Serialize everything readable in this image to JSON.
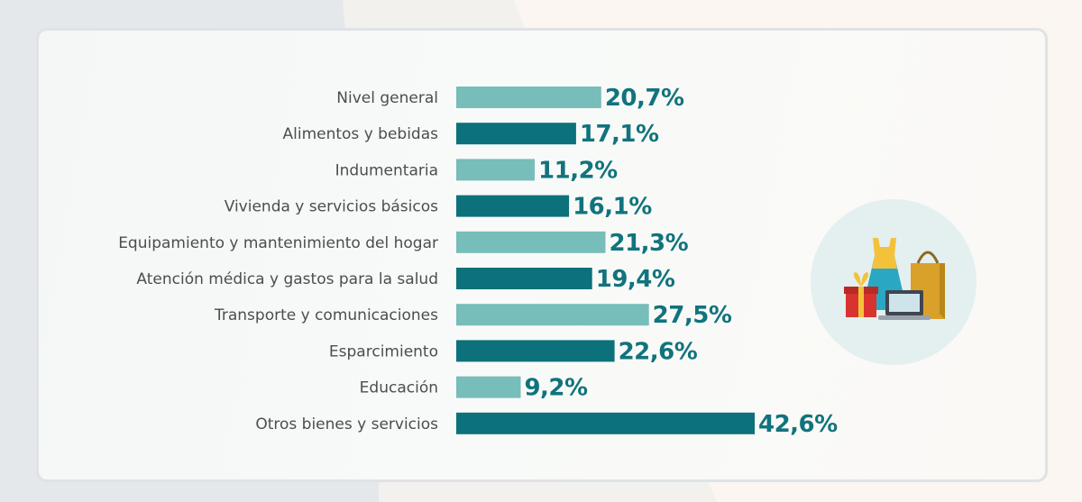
{
  "chart_data": {
    "type": "bar",
    "orientation": "horizontal",
    "categories": [
      "Nivel general",
      "Alimentos y bebidas",
      "Indumentaria",
      "Vivienda y servicios básicos",
      "Equipamiento y mantenimiento del hogar",
      "Atención médica y gastos para la salud",
      "Transporte y comunicaciones",
      "Esparcimiento",
      "Educación",
      "Otros bienes y servicios"
    ],
    "values": [
      20.7,
      17.1,
      11.2,
      16.1,
      21.3,
      19.4,
      27.5,
      22.6,
      9.2,
      42.6
    ],
    "value_labels": [
      "20,7%",
      "17,1%",
      "11,2%",
      "16,1%",
      "21,3%",
      "19,4%",
      "27,5%",
      "22,6%",
      "9,2%",
      "42,6%"
    ],
    "xlim": [
      0,
      42.6
    ],
    "grid": false,
    "colors": {
      "light": "#77bdb9",
      "dark": "#0c717a",
      "value_text": "#11737d",
      "label_text": "#4d4d4d"
    },
    "bar_colors": [
      "light",
      "dark",
      "light",
      "dark",
      "light",
      "dark",
      "light",
      "dark",
      "light",
      "dark"
    ]
  },
  "illustration": {
    "icons": [
      "dress-icon",
      "shopping-bag-icon",
      "gift-box-icon",
      "laptop-icon"
    ]
  }
}
